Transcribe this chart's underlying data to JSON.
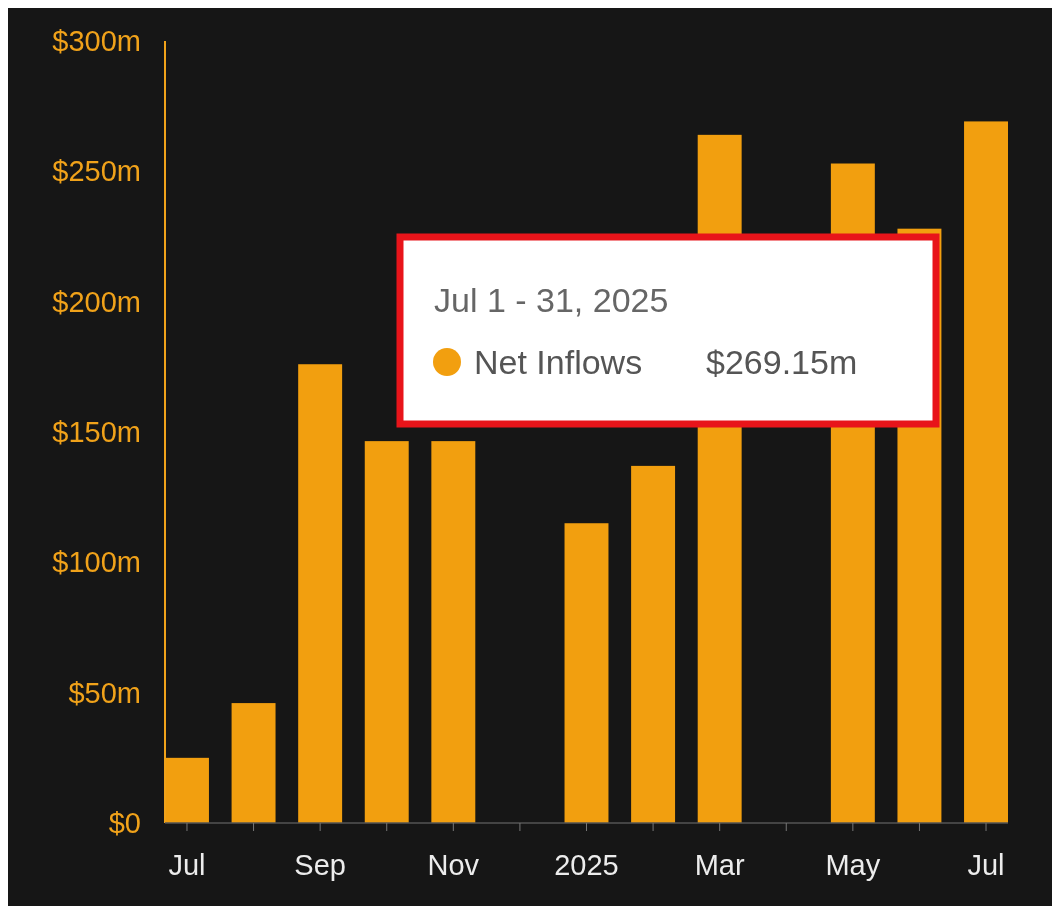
{
  "chart_data": {
    "type": "bar",
    "categories": [
      "Jul",
      null,
      "Sep",
      null,
      "Nov",
      null,
      "2025",
      null,
      "Mar",
      null,
      "May",
      null,
      "Jul"
    ],
    "series": [
      {
        "name": "Net Inflows",
        "color": "#f29f0f",
        "values": [
          25,
          46,
          176,
          146.5,
          146.5,
          null,
          115,
          137,
          264,
          null,
          253,
          228,
          269.15
        ]
      }
    ],
    "ylim": [
      0,
      300
    ],
    "yticks": [
      {
        "value": 0,
        "label": "$0"
      },
      {
        "value": 50,
        "label": "$50m"
      },
      {
        "value": 100,
        "label": "$100m"
      },
      {
        "value": 150,
        "label": "$150m"
      },
      {
        "value": 200,
        "label": "$200m"
      },
      {
        "value": 250,
        "label": "$250m"
      },
      {
        "value": 300,
        "label": "$300m"
      }
    ],
    "grid": false,
    "legend": "top",
    "annotations": [
      "Jul 1 - 31, 2025",
      "$269.15m"
    ]
  }
}
